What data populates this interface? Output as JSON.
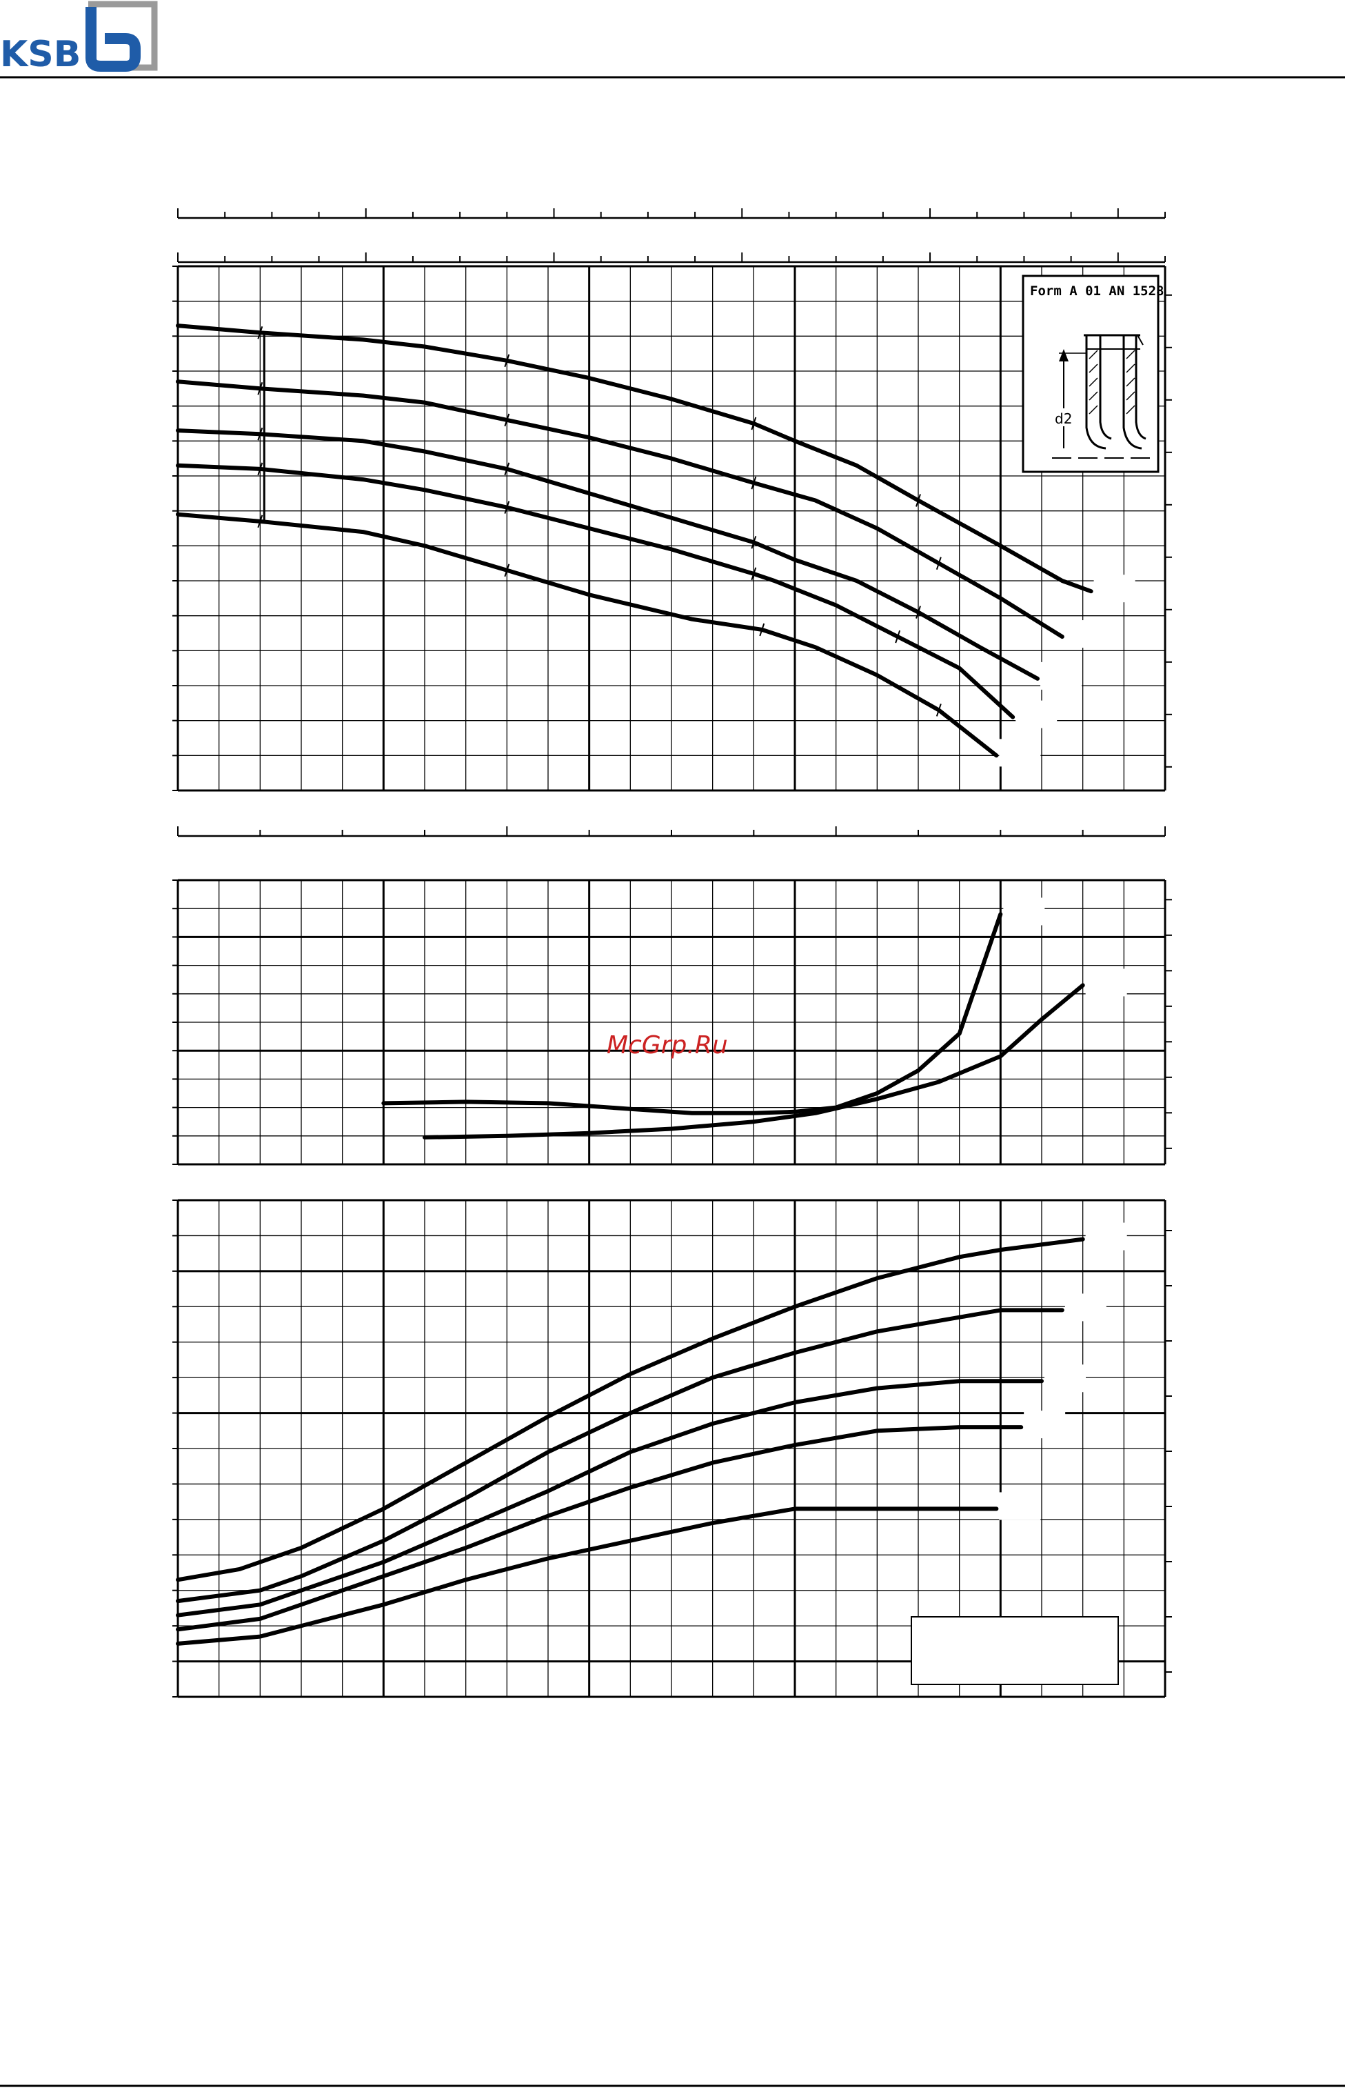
{
  "header": {
    "logo_text": "KSB",
    "logo_mark": "b"
  },
  "watermark": "McGrp.Ru",
  "inset": {
    "title": "Form A 01 AN 1528",
    "dimension_label": "d2"
  },
  "colors": {
    "ink": "#000000",
    "logo_blue": "#1f5ca8",
    "logo_grey": "#9a9a9a",
    "watermark": "#cc2222"
  },
  "chart_data": [
    {
      "type": "line",
      "panel": "head",
      "xlim": [
        0,
        24
      ],
      "ylim": [
        0,
        15
      ],
      "grid": true,
      "series": [
        {
          "x": [
            0,
            2,
            4.5,
            6,
            8,
            10,
            12,
            14,
            15,
            16.5,
            18,
            20,
            21.5,
            22.2
          ],
          "y": [
            13.3,
            13.1,
            12.9,
            12.7,
            12.3,
            11.8,
            11.2,
            10.5,
            10.0,
            9.3,
            8.3,
            7.0,
            6.0,
            5.7
          ]
        },
        {
          "x": [
            0,
            2,
            4.5,
            6,
            8,
            10,
            12,
            14,
            15.5,
            17,
            18.5,
            20,
            21.5
          ],
          "y": [
            11.7,
            11.5,
            11.3,
            11.1,
            10.6,
            10.1,
            9.5,
            8.8,
            8.3,
            7.5,
            6.5,
            5.5,
            4.4
          ]
        },
        {
          "x": [
            0,
            2,
            4.5,
            6,
            8,
            10,
            12,
            14,
            15,
            16.5,
            18,
            19.5,
            20.9
          ],
          "y": [
            10.3,
            10.2,
            10.0,
            9.7,
            9.2,
            8.5,
            7.8,
            7.1,
            6.6,
            6.0,
            5.1,
            4.1,
            3.2
          ]
        },
        {
          "x": [
            0,
            2,
            4.5,
            6,
            8,
            10,
            12,
            14,
            14.5,
            16,
            17.5,
            19,
            20.3
          ],
          "y": [
            9.3,
            9.2,
            8.9,
            8.6,
            8.1,
            7.5,
            6.9,
            6.2,
            6.0,
            5.3,
            4.4,
            3.5,
            2.1
          ]
        },
        {
          "x": [
            0,
            2,
            4.5,
            6,
            8,
            10,
            12.5,
            14.2,
            15.5,
            17,
            18.5,
            19.9
          ],
          "y": [
            7.9,
            7.7,
            7.4,
            7.0,
            6.3,
            5.6,
            4.9,
            4.6,
            4.1,
            3.3,
            2.3,
            1.0
          ]
        }
      ]
    },
    {
      "type": "line",
      "panel": "npsh",
      "xlim": [
        0,
        24
      ],
      "ylim": [
        0,
        10
      ],
      "grid": true,
      "series": [
        {
          "x": [
            5,
            7,
            9,
            11,
            12.5,
            14,
            15,
            16,
            17,
            18,
            19,
            20
          ],
          "y": [
            2.15,
            2.2,
            2.15,
            1.95,
            1.8,
            1.8,
            1.85,
            2.0,
            2.5,
            3.3,
            4.6,
            8.8
          ]
        },
        {
          "x": [
            6,
            8,
            10,
            12,
            14,
            15.5,
            17,
            18.5,
            20,
            21,
            22
          ],
          "y": [
            0.95,
            1.0,
            1.1,
            1.25,
            1.5,
            1.8,
            2.3,
            2.9,
            3.8,
            5.1,
            6.3
          ]
        }
      ]
    },
    {
      "type": "line",
      "panel": "power",
      "xlim": [
        0,
        24
      ],
      "ylim": [
        0,
        14
      ],
      "grid": true,
      "series": [
        {
          "x": [
            0,
            1.5,
            3,
            5,
            7,
            9,
            11,
            13,
            15,
            17,
            19,
            20,
            22
          ],
          "y": [
            3.3,
            3.6,
            4.2,
            5.3,
            6.6,
            7.9,
            9.1,
            10.1,
            11.0,
            11.8,
            12.4,
            12.6,
            12.9
          ]
        },
        {
          "x": [
            0,
            2,
            3,
            5,
            7,
            9,
            11,
            13,
            15,
            17,
            19,
            20,
            21.5
          ],
          "y": [
            2.7,
            3.0,
            3.4,
            4.4,
            5.6,
            6.9,
            8.0,
            9.0,
            9.7,
            10.3,
            10.7,
            10.9,
            10.9
          ]
        },
        {
          "x": [
            0,
            2,
            3,
            5,
            7,
            9,
            11,
            13,
            15,
            17,
            19,
            21
          ],
          "y": [
            2.3,
            2.6,
            3.0,
            3.8,
            4.8,
            5.8,
            6.9,
            7.7,
            8.3,
            8.7,
            8.9,
            8.9
          ]
        },
        {
          "x": [
            0,
            2,
            3,
            5,
            7,
            9,
            11,
            13,
            15,
            17,
            19,
            20.5
          ],
          "y": [
            1.9,
            2.2,
            2.6,
            3.4,
            4.2,
            5.1,
            5.9,
            6.6,
            7.1,
            7.5,
            7.6,
            7.6
          ]
        },
        {
          "x": [
            0,
            2,
            3,
            5,
            7,
            9,
            11,
            13,
            15,
            17,
            18.5,
            19.9
          ],
          "y": [
            1.5,
            1.7,
            2.0,
            2.6,
            3.3,
            3.9,
            4.4,
            4.9,
            5.3,
            5.3,
            5.3,
            5.3
          ]
        }
      ]
    }
  ]
}
